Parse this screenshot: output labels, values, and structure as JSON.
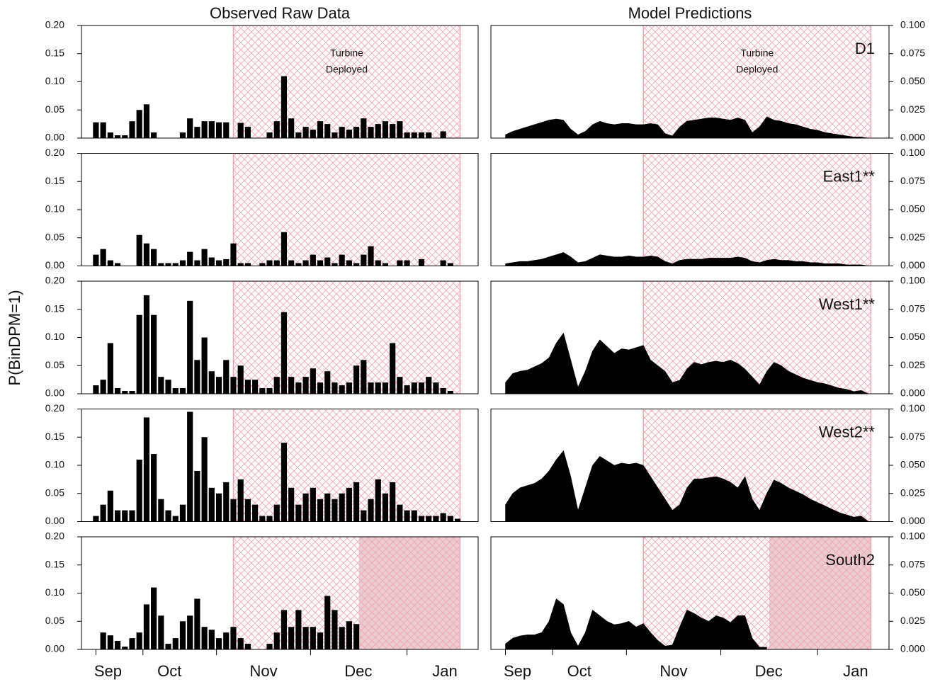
{
  "chart_data": {
    "type": "panel-grid",
    "ylabel": "P(BinDPM=1)",
    "annotation": [
      "Turbine",
      "Deployed"
    ],
    "x": [
      0,
      3,
      6,
      9,
      12,
      15,
      18,
      21,
      24,
      27,
      30,
      33,
      36,
      39,
      42,
      45,
      48,
      51,
      54,
      57,
      60,
      63,
      66,
      69,
      72,
      75,
      78,
      81,
      84,
      87,
      90,
      93,
      96,
      99,
      102,
      105,
      108,
      111,
      114,
      117,
      120,
      123,
      126,
      129,
      132,
      135,
      138,
      141,
      144,
      147,
      150
    ],
    "xlim": [
      -6,
      158.5
    ],
    "xticks": [
      {
        "value": 5,
        "label": "Sep"
      },
      {
        "value": 30.5,
        "label": "Oct"
      },
      {
        "value": 69.5,
        "label": "Nov"
      },
      {
        "value": 108.8,
        "label": "Dec"
      },
      {
        "value": 144.7,
        "label": "Jan"
      }
    ],
    "xminor": [
      0,
      19.5,
      50,
      89,
      129
    ],
    "deployed": [
      57,
      151
    ],
    "hatch_color": "#f4a3b0",
    "columns": [
      {
        "title": "Observed Raw Data",
        "type": "bar",
        "color": "#000000",
        "ylim": [
          0,
          0.2
        ],
        "yticks": [
          {
            "value": 0,
            "label": "0.00"
          },
          {
            "value": 0.05,
            "label": "0.05"
          },
          {
            "value": 0.1,
            "label": "0.10"
          },
          {
            "value": 0.15,
            "label": "0.15"
          },
          {
            "value": 0.2,
            "label": "0.20"
          }
        ]
      },
      {
        "title": "Model Predictions",
        "type": "area",
        "color": "#000000",
        "ylim": [
          0,
          0.1
        ],
        "yticks": [
          {
            "value": 0,
            "label": "0.000"
          },
          {
            "value": 0.025,
            "label": "0.025"
          },
          {
            "value": 0.05,
            "label": "0.050"
          },
          {
            "value": 0.075,
            "label": "0.075"
          },
          {
            "value": 0.1,
            "label": "0.100"
          }
        ]
      }
    ],
    "rows": [
      {
        "name": "D1",
        "observed": [
          0.028,
          0.028,
          0.01,
          0.005,
          0.005,
          0.03,
          0.05,
          0.06,
          0.01,
          0,
          0,
          0,
          0.01,
          0.035,
          0.02,
          0.03,
          0.03,
          0.028,
          0.028,
          0,
          0.027,
          0.02,
          0,
          0,
          0.01,
          0.03,
          0.11,
          0.035,
          0.01,
          0.02,
          0.015,
          0.03,
          0.025,
          0.01,
          0.02,
          0.015,
          0.02,
          0.035,
          0.02,
          0.025,
          0.03,
          0.025,
          0.03,
          0.01,
          0.01,
          0.01,
          0.01,
          0,
          0.012,
          0,
          0
        ],
        "predicted": [
          0.003,
          0.006,
          0.008,
          0.01,
          0.012,
          0.014,
          0.016,
          0.017,
          0.016,
          0.008,
          0.003,
          0.006,
          0.012,
          0.015,
          0.013,
          0.012,
          0.013,
          0.013,
          0.012,
          0.012,
          0.013,
          0.012,
          0.004,
          0.002,
          0.01,
          0.015,
          0.016,
          0.017,
          0.018,
          0.018,
          0.017,
          0.016,
          0.018,
          0.016,
          0.005,
          0.01,
          0.019,
          0.016,
          0.015,
          0.013,
          0.012,
          0.01,
          0.008,
          0.007,
          0.005,
          0.004,
          0.003,
          0.002,
          0.001,
          0.001,
          0
        ]
      },
      {
        "name": "East1**",
        "observed": [
          0.02,
          0.03,
          0.01,
          0.005,
          0,
          0,
          0.055,
          0.04,
          0.03,
          0.005,
          0.005,
          0.005,
          0.01,
          0.025,
          0.01,
          0.03,
          0.015,
          0.01,
          0.012,
          0.04,
          0.005,
          0.005,
          0,
          0.005,
          0.01,
          0.01,
          0.06,
          0.01,
          0.005,
          0.01,
          0.02,
          0.01,
          0.015,
          0.005,
          0.02,
          0.01,
          0.005,
          0.02,
          0.035,
          0.01,
          0.005,
          0,
          0.01,
          0.01,
          0,
          0.012,
          0,
          0,
          0.01,
          0.005,
          0
        ],
        "predicted": [
          0.002,
          0.003,
          0.004,
          0.004,
          0.005,
          0.006,
          0.008,
          0.01,
          0.012,
          0.008,
          0.003,
          0.004,
          0.007,
          0.01,
          0.009,
          0.008,
          0.008,
          0.009,
          0.008,
          0.008,
          0.009,
          0.008,
          0.004,
          0.002,
          0.005,
          0.006,
          0.006,
          0.006,
          0.007,
          0.007,
          0.007,
          0.007,
          0.008,
          0.007,
          0.004,
          0.003,
          0.005,
          0.006,
          0.005,
          0.005,
          0.004,
          0.004,
          0.003,
          0.003,
          0.002,
          0.002,
          0.002,
          0.001,
          0.001,
          0.001,
          0
        ]
      },
      {
        "name": "West1**",
        "observed": [
          0.015,
          0.025,
          0.09,
          0.01,
          0.005,
          0.005,
          0.14,
          0.175,
          0.14,
          0.03,
          0.025,
          0.01,
          0.01,
          0.165,
          0.06,
          0.1,
          0.04,
          0.03,
          0.06,
          0.03,
          0.05,
          0.025,
          0.025,
          0.01,
          0.01,
          0.03,
          0.145,
          0.03,
          0.02,
          0.03,
          0.045,
          0.02,
          0.04,
          0.02,
          0.015,
          0.02,
          0.05,
          0.06,
          0.02,
          0.02,
          0.02,
          0.09,
          0.03,
          0.015,
          0.02,
          0.02,
          0.03,
          0.02,
          0.01,
          0.005,
          0
        ],
        "predicted": [
          0.01,
          0.018,
          0.02,
          0.021,
          0.024,
          0.027,
          0.032,
          0.045,
          0.054,
          0.03,
          0.006,
          0.02,
          0.038,
          0.048,
          0.042,
          0.036,
          0.04,
          0.039,
          0.041,
          0.043,
          0.03,
          0.025,
          0.02,
          0.01,
          0.012,
          0.022,
          0.028,
          0.026,
          0.028,
          0.029,
          0.028,
          0.03,
          0.027,
          0.022,
          0.015,
          0.008,
          0.02,
          0.028,
          0.025,
          0.02,
          0.017,
          0.014,
          0.012,
          0.01,
          0.009,
          0.007,
          0.005,
          0.004,
          0.002,
          0.003,
          0
        ]
      },
      {
        "name": "West2**",
        "observed": [
          0.01,
          0.03,
          0.055,
          0.02,
          0.02,
          0.02,
          0.11,
          0.185,
          0.12,
          0.04,
          0.02,
          0.01,
          0.03,
          0.195,
          0.09,
          0.15,
          0.06,
          0.05,
          0.07,
          0.04,
          0.075,
          0.04,
          0.03,
          0.01,
          0.01,
          0.03,
          0.14,
          0.06,
          0.03,
          0.05,
          0.06,
          0.04,
          0.05,
          0.04,
          0.05,
          0.06,
          0.07,
          0.02,
          0.04,
          0.075,
          0.05,
          0.07,
          0.03,
          0.02,
          0.02,
          0.01,
          0.01,
          0.01,
          0.015,
          0.01,
          0.005
        ],
        "predicted": [
          0.015,
          0.025,
          0.03,
          0.032,
          0.034,
          0.038,
          0.045,
          0.055,
          0.063,
          0.04,
          0.01,
          0.03,
          0.05,
          0.058,
          0.054,
          0.05,
          0.052,
          0.051,
          0.052,
          0.05,
          0.04,
          0.03,
          0.02,
          0.01,
          0.015,
          0.03,
          0.038,
          0.038,
          0.039,
          0.04,
          0.038,
          0.035,
          0.03,
          0.04,
          0.02,
          0.01,
          0.025,
          0.037,
          0.034,
          0.03,
          0.027,
          0.024,
          0.02,
          0.017,
          0.014,
          0.011,
          0.008,
          0.006,
          0.004,
          0.005,
          0
        ]
      },
      {
        "name": "South2",
        "shade": [
          109,
          151
        ],
        "shade_color": "#e9cdd1",
        "observed": [
          0,
          0.03,
          0.025,
          0.015,
          0.005,
          0.02,
          0.03,
          0.08,
          0.11,
          0.06,
          0.01,
          0.02,
          0.05,
          0.06,
          0.09,
          0.04,
          0.035,
          0.02,
          0.03,
          0.04,
          0.02,
          0.01,
          0,
          0,
          0.01,
          0.03,
          0.07,
          0.04,
          0.07,
          0.04,
          0.04,
          0.03,
          0.095,
          0.07,
          0.04,
          0.05,
          0.045,
          null,
          null,
          null,
          null,
          null,
          null,
          null,
          null,
          null,
          null,
          null,
          null,
          null,
          null
        ],
        "predicted": [
          0.005,
          0.01,
          0.012,
          0.013,
          0.013,
          0.015,
          0.025,
          0.045,
          0.04,
          0.015,
          0.003,
          0.015,
          0.035,
          0.03,
          0.025,
          0.022,
          0.023,
          0.025,
          0.02,
          0.023,
          0.015,
          0.008,
          0.003,
          0.004,
          0.02,
          0.035,
          0.032,
          0.028,
          0.025,
          0.03,
          0.028,
          0.024,
          0.03,
          0.03,
          0.01,
          0.002,
          0.002,
          null,
          null,
          null,
          null,
          null,
          null,
          null,
          null,
          null,
          null,
          null,
          null,
          null,
          null
        ]
      }
    ]
  }
}
